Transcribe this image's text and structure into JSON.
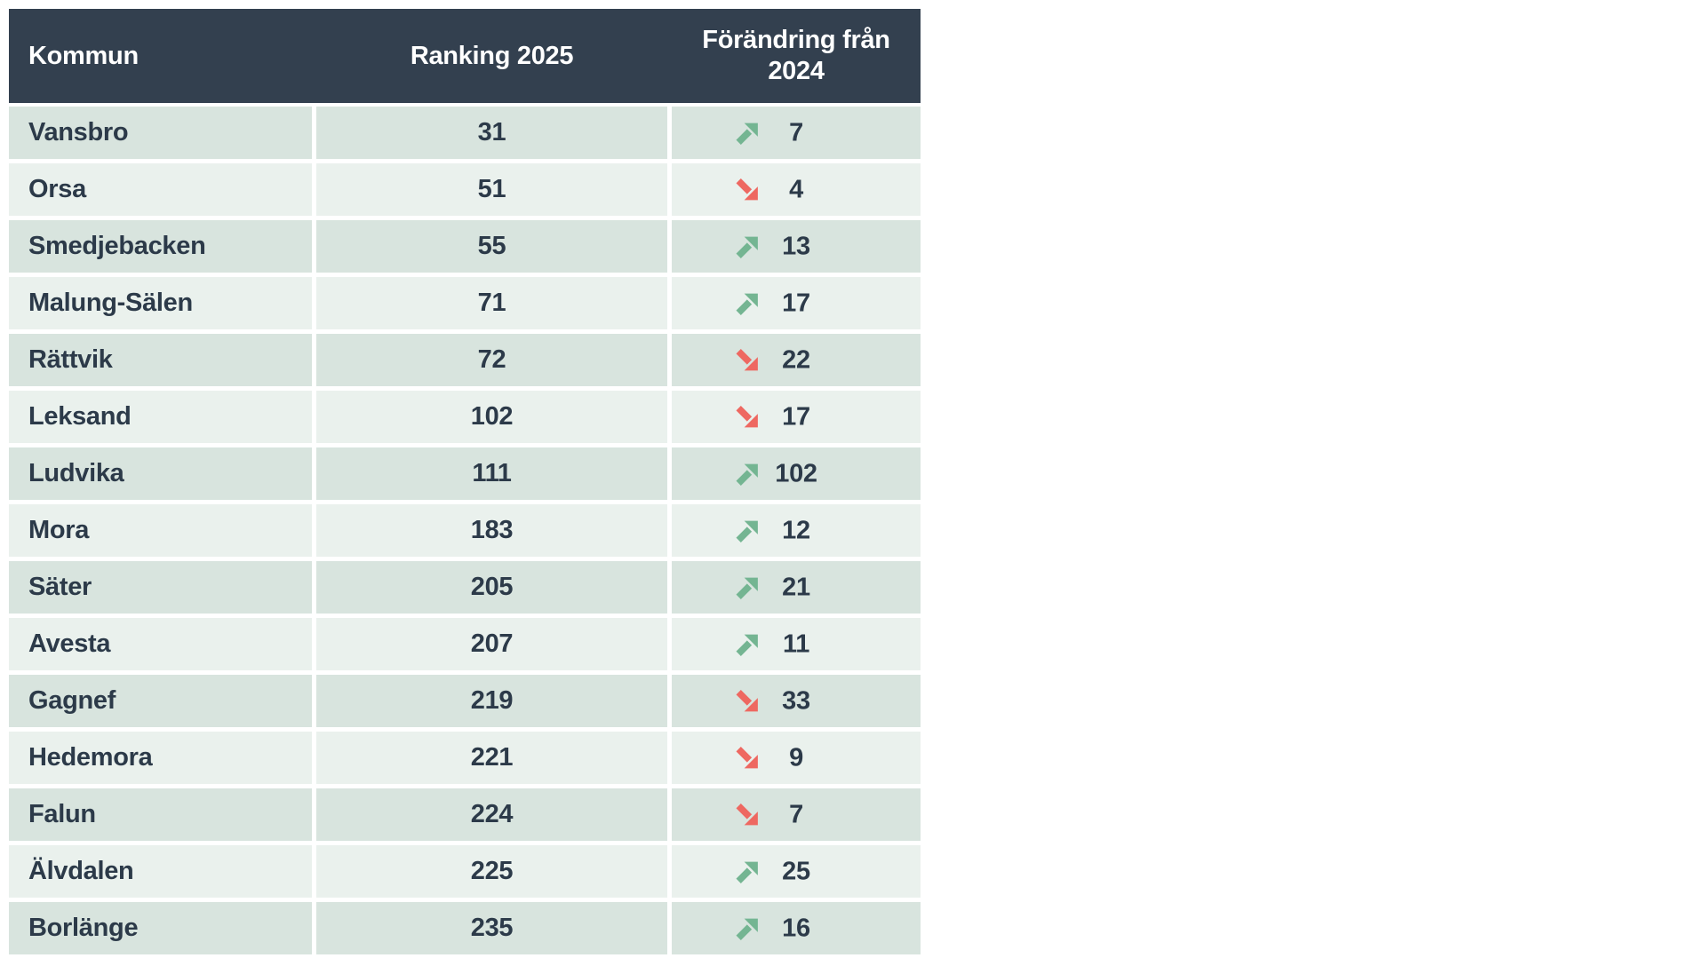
{
  "colors": {
    "header_bg": "#33404f",
    "header_text": "#ffffff",
    "row_dark": "#d8e4de",
    "row_light": "#eaf1ed",
    "cell_text": "#2c3a49",
    "up_arrow": "#74b592",
    "down_arrow": "#ee6861",
    "gap": "#ffffff"
  },
  "icons": {
    "up": "arrow-up-right-icon",
    "down": "arrow-down-right-icon"
  },
  "chart_data": {
    "type": "table",
    "columns": [
      "Kommun",
      "Ranking 2025",
      "Förändring från 2024"
    ],
    "rows": [
      {
        "kommun": "Vansbro",
        "ranking_2025": 31,
        "change_from_2024": 7,
        "direction": "up"
      },
      {
        "kommun": "Orsa",
        "ranking_2025": 51,
        "change_from_2024": 4,
        "direction": "down"
      },
      {
        "kommun": "Smedjebacken",
        "ranking_2025": 55,
        "change_from_2024": 13,
        "direction": "up"
      },
      {
        "kommun": "Malung-Sälen",
        "ranking_2025": 71,
        "change_from_2024": 17,
        "direction": "up"
      },
      {
        "kommun": "Rättvik",
        "ranking_2025": 72,
        "change_from_2024": 22,
        "direction": "down"
      },
      {
        "kommun": "Leksand",
        "ranking_2025": 102,
        "change_from_2024": 17,
        "direction": "down"
      },
      {
        "kommun": "Ludvika",
        "ranking_2025": 111,
        "change_from_2024": 102,
        "direction": "up"
      },
      {
        "kommun": "Mora",
        "ranking_2025": 183,
        "change_from_2024": 12,
        "direction": "up"
      },
      {
        "kommun": "Säter",
        "ranking_2025": 205,
        "change_from_2024": 21,
        "direction": "up"
      },
      {
        "kommun": "Avesta",
        "ranking_2025": 207,
        "change_from_2024": 11,
        "direction": "up"
      },
      {
        "kommun": "Gagnef",
        "ranking_2025": 219,
        "change_from_2024": 33,
        "direction": "down"
      },
      {
        "kommun": "Hedemora",
        "ranking_2025": 221,
        "change_from_2024": 9,
        "direction": "down"
      },
      {
        "kommun": "Falun",
        "ranking_2025": 224,
        "change_from_2024": 7,
        "direction": "down"
      },
      {
        "kommun": "Älvdalen",
        "ranking_2025": 225,
        "change_from_2024": 25,
        "direction": "up"
      },
      {
        "kommun": "Borlänge",
        "ranking_2025": 235,
        "change_from_2024": 16,
        "direction": "up"
      }
    ]
  }
}
